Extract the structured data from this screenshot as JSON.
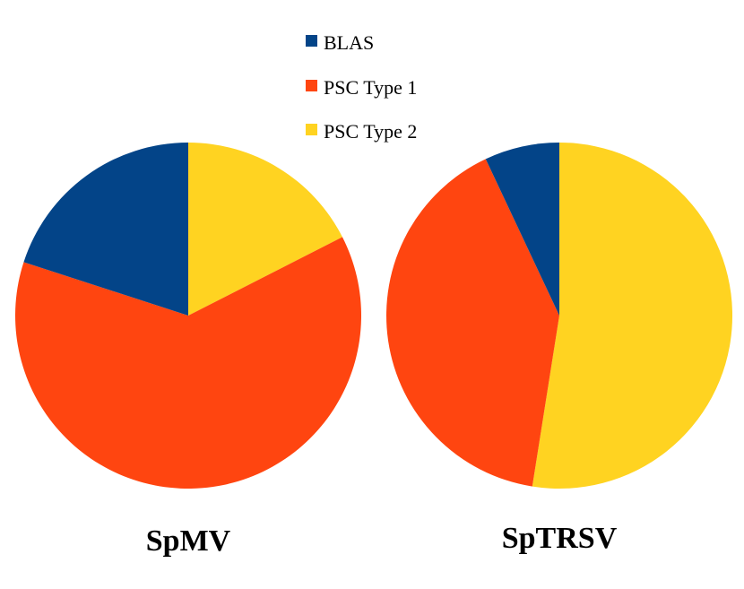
{
  "chart_data": {
    "type": "pie",
    "legend": {
      "placement": "top-center",
      "entries": [
        {
          "label": "BLAS",
          "color": "#034488"
        },
        {
          "label": "PSC Type 1",
          "color": "#FF4510"
        },
        {
          "label": "PSC Type 2",
          "color": "#FFD321"
        }
      ]
    },
    "charts": [
      {
        "title": "SpMV",
        "slices": [
          {
            "label": "PSC Type 2",
            "value": 17.5,
            "color": "#FFD321"
          },
          {
            "label": "PSC Type 1",
            "value": 62.5,
            "color": "#FF4510"
          },
          {
            "label": "BLAS",
            "value": 20,
            "color": "#034488"
          }
        ]
      },
      {
        "title": "SpTRSV",
        "slices": [
          {
            "label": "PSC Type 2",
            "value": 52.5,
            "color": "#FFD321"
          },
          {
            "label": "PSC Type 1",
            "value": 40.5,
            "color": "#FF4510"
          },
          {
            "label": "BLAS",
            "value": 7,
            "color": "#034488"
          }
        ]
      }
    ]
  }
}
